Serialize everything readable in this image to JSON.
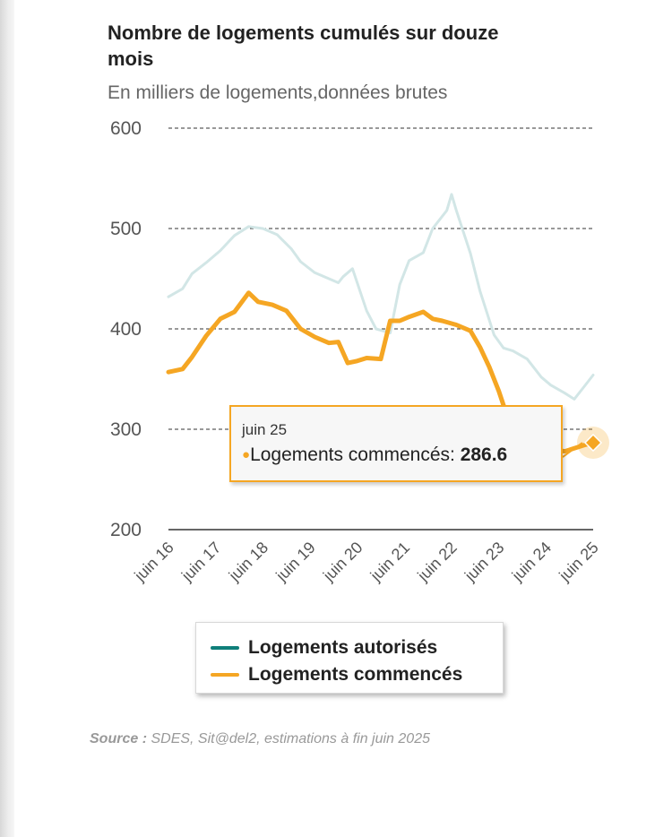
{
  "title": "Nombre de logements cumulés sur douze mois",
  "subtitle": "En milliers de logements,données brutes",
  "legend": {
    "items": [
      {
        "label": "Logements autorisés",
        "color": "#0f7f7a"
      },
      {
        "label": "Logements commencés",
        "color": "#f5a623"
      }
    ]
  },
  "tooltip": {
    "date": "juin 25",
    "series": "Logements commencés",
    "value": "286.6"
  },
  "source": {
    "label": "Source :",
    "text": "SDES, Sit@del2, estimations à fin juin 2025"
  },
  "colors": {
    "autorises_faded": "#d2e6e6",
    "commences": "#f5a623",
    "grid": "#333333"
  },
  "chart_data": {
    "type": "line",
    "title": "Nombre de logements cumulés sur douze mois",
    "subtitle": "En milliers de logements,données brutes",
    "xlabel": "",
    "ylabel": "",
    "ylim": [
      200,
      600
    ],
    "yticks": [
      200,
      300,
      400,
      500,
      600
    ],
    "xlim": [
      2016.5,
      2025.5
    ],
    "xticks": [
      {
        "label": "juin 16",
        "x": 2016.5
      },
      {
        "label": "juin 17",
        "x": 2017.5
      },
      {
        "label": "juin 18",
        "x": 2018.5
      },
      {
        "label": "juin 19",
        "x": 2019.5
      },
      {
        "label": "juin 20",
        "x": 2020.5
      },
      {
        "label": "juin 21",
        "x": 2021.5
      },
      {
        "label": "juin 22",
        "x": 2022.5
      },
      {
        "label": "juin 23",
        "x": 2023.5
      },
      {
        "label": "juin 24",
        "x": 2024.5
      },
      {
        "label": "juin 25",
        "x": 2025.5
      }
    ],
    "grid": true,
    "legend": "bottom",
    "series": [
      {
        "name": "Logements autorisés",
        "x": [
          2016.5,
          2016.8,
          2017.0,
          2017.3,
          2017.6,
          2017.9,
          2018.2,
          2018.5,
          2018.8,
          2019.1,
          2019.3,
          2019.6,
          2019.9,
          2020.1,
          2020.2,
          2020.4,
          2020.7,
          2020.9,
          2021.2,
          2021.4,
          2021.6,
          2021.9,
          2022.1,
          2022.4,
          2022.5,
          2022.6,
          2022.9,
          2023.1,
          2023.4,
          2023.6,
          2023.8,
          2024.1,
          2024.4,
          2024.6,
          2024.9,
          2025.1,
          2025.3,
          2025.5
        ],
        "y": [
          432,
          440,
          455,
          466,
          478,
          493,
          502,
          500,
          494,
          480,
          467,
          456,
          450,
          446,
          452,
          460,
          418,
          400,
          396,
          444,
          468,
          476,
          500,
          518,
          534,
          518,
          475,
          438,
          394,
          381,
          378,
          370,
          352,
          344,
          336,
          330,
          342,
          354
        ]
      },
      {
        "name": "Logements commencés",
        "x": [
          2016.5,
          2016.8,
          2017.0,
          2017.3,
          2017.6,
          2017.9,
          2018.2,
          2018.4,
          2018.7,
          2019.0,
          2019.3,
          2019.6,
          2019.9,
          2020.1,
          2020.3,
          2020.5,
          2020.7,
          2021.0,
          2021.2,
          2021.4,
          2021.6,
          2021.9,
          2022.1,
          2022.3,
          2022.6,
          2022.9,
          2023.1,
          2023.3,
          2023.5,
          2023.7,
          2023.9,
          2024.1,
          2024.4,
          2024.6,
          2024.9,
          2025.1,
          2025.3,
          2025.5
        ],
        "y": [
          357,
          360,
          372,
          393,
          410,
          417,
          436,
          427,
          424,
          418,
          400,
          392,
          386,
          387,
          366,
          368,
          371,
          370,
          408,
          408,
          412,
          417,
          410,
          408,
          404,
          398,
          382,
          362,
          338,
          310,
          298,
          290,
          282,
          280,
          278,
          281,
          284,
          286.6
        ]
      }
    ]
  }
}
